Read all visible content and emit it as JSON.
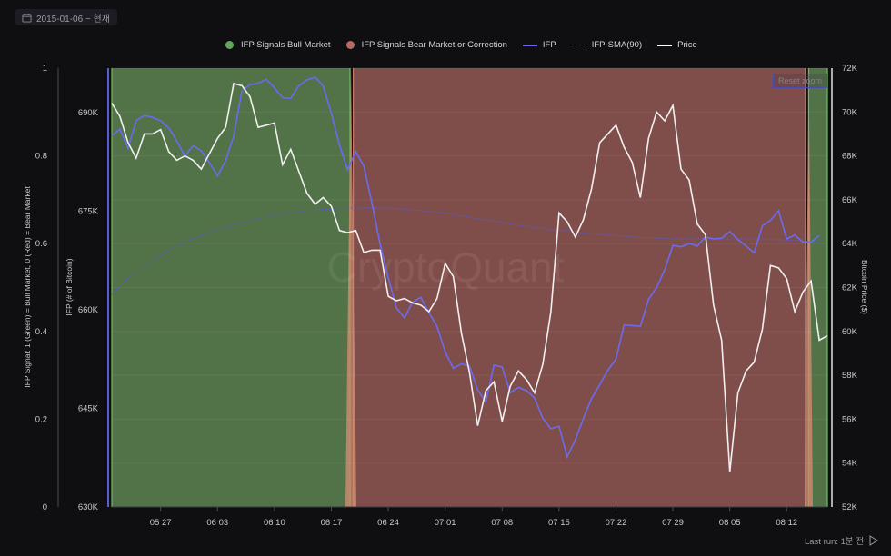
{
  "date_range": {
    "label": "2015-01-06 ~ 현재",
    "icon": "calendar-icon"
  },
  "legend": [
    {
      "label": "IFP Signals Bull Market",
      "type": "dot",
      "color": "#5fa85a"
    },
    {
      "label": "IFP Signals Bear Market or Correction",
      "type": "dot",
      "color": "#b86a62"
    },
    {
      "label": "IFP",
      "type": "line",
      "color": "#6b6bef"
    },
    {
      "label": "IFP-SMA(90)",
      "type": "dashed",
      "color": "#5555c0"
    },
    {
      "label": "Price",
      "type": "line",
      "color": "#ffffff"
    }
  ],
  "reset_zoom_label": "Reset zoom",
  "watermark": "CryptoQuant",
  "last_run": {
    "label": "Last run: 1분 전",
    "icon": "play-icon"
  },
  "colors": {
    "background": "#0f0f12",
    "bull_fill": "#527348",
    "bear_fill": "#804e4a",
    "transition_fill": "#c98a6e",
    "ifp": "#6b6bef",
    "sma": "#5a5ac8",
    "price": "#f0f0f0"
  },
  "chart_data": {
    "type": "line",
    "title": "",
    "x": [
      "05 21",
      "05 22",
      "05 23",
      "05 24",
      "05 25",
      "05 26",
      "05 27",
      "05 28",
      "05 29",
      "05 30",
      "05 31",
      "06 01",
      "06 02",
      "06 03",
      "06 04",
      "06 05",
      "06 06",
      "06 07",
      "06 08",
      "06 09",
      "06 10",
      "06 11",
      "06 12",
      "06 13",
      "06 14",
      "06 15",
      "06 16",
      "06 17",
      "06 18",
      "06 19",
      "06 20",
      "06 21",
      "06 22",
      "06 23",
      "06 24",
      "06 25",
      "06 26",
      "06 27",
      "06 28",
      "06 29",
      "06 30",
      "07 01",
      "07 02",
      "07 03",
      "07 04",
      "07 05",
      "07 06",
      "07 07",
      "07 08",
      "07 09",
      "07 10",
      "07 11",
      "07 12",
      "07 13",
      "07 14",
      "07 15",
      "07 16",
      "07 17",
      "07 18",
      "07 19",
      "07 20",
      "07 21",
      "07 22",
      "07 23",
      "07 24",
      "07 25",
      "07 26",
      "07 27",
      "07 28",
      "07 29",
      "07 30",
      "07 31",
      "08 01",
      "08 02",
      "08 03",
      "08 04",
      "08 05",
      "08 06",
      "08 07",
      "08 08",
      "08 09",
      "08 10",
      "08 11",
      "08 12",
      "08 13",
      "08 14",
      "08 15",
      "08 16",
      "08 17"
    ],
    "xticks": [
      "05 27",
      "06 03",
      "06 10",
      "06 17",
      "06 24",
      "07 01",
      "07 08",
      "07 15",
      "07 22",
      "07 29",
      "08 05",
      "08 12"
    ],
    "series": [
      {
        "name": "IFP",
        "axis": "ifp",
        "values": [
          686.5,
          687.5,
          684.6,
          688.8,
          689.6,
          689.3,
          688.8,
          687.7,
          685.7,
          683.4,
          685.0,
          684.2,
          682.4,
          680.4,
          682.7,
          686.5,
          693.3,
          694.3,
          694.5,
          695.1,
          693.8,
          692.3,
          692.2,
          694.1,
          695.0,
          695.4,
          694.1,
          689.9,
          685.1,
          681.3,
          684.1,
          681.9,
          676.2,
          670.0,
          664.9,
          660.3,
          658.8,
          661.2,
          661.9,
          659.6,
          657.5,
          653.6,
          651.1,
          651.8,
          651.4,
          647.8,
          646.0,
          651.6,
          651.3,
          647.4,
          648.2,
          647.7,
          646.6,
          643.5,
          641.9,
          642.3,
          637.6,
          640.2,
          643.5,
          646.5,
          648.6,
          650.8,
          652.5,
          657.7,
          657.6,
          657.5,
          661.6,
          663.4,
          666.1,
          669.8,
          669.6,
          670.1,
          669.7,
          671.1,
          670.8,
          670.9,
          671.9,
          670.7,
          669.7,
          668.7,
          672.8,
          673.6,
          675.1,
          670.8,
          671.4,
          670.3,
          670.3,
          671.3,
          672.3
        ]
      },
      {
        "name": "IFP-SMA(90)",
        "axis": "ifp",
        "values": [
          662.3,
          663.6,
          664.8,
          665.8,
          666.7,
          667.5,
          668.3,
          669.0,
          669.7,
          670.3,
          670.8,
          671.3,
          671.8,
          672.2,
          672.6,
          673.0,
          673.3,
          673.6,
          673.9,
          674.1,
          674.4,
          674.6,
          674.8,
          675.0,
          675.1,
          675.2,
          675.3,
          675.3,
          675.4,
          675.5,
          675.5,
          675.5,
          675.6,
          675.5,
          675.5,
          675.4,
          675.3,
          675.2,
          675.1,
          675.0,
          674.8,
          674.7,
          674.5,
          674.3,
          674.1,
          673.9,
          673.7,
          673.5,
          673.3,
          673.1,
          672.9,
          672.7,
          672.5,
          672.4,
          672.2,
          672.1,
          672.0,
          671.8,
          671.7,
          671.6,
          671.5,
          671.4,
          671.3,
          671.2,
          671.1,
          671.0,
          671.0,
          670.9,
          670.9,
          670.8,
          670.8,
          670.8,
          670.8,
          670.8,
          670.8,
          670.8,
          670.8,
          670.8,
          670.8,
          670.8,
          670.8,
          670.7,
          670.7,
          670.6,
          670.6,
          670.5,
          670.4,
          670.3,
          670.2
        ]
      },
      {
        "name": "Price",
        "axis": "price",
        "values": [
          70.4,
          69.8,
          68.6,
          67.9,
          69.0,
          69.0,
          69.2,
          68.2,
          67.8,
          68.0,
          67.8,
          67.4,
          68.1,
          68.8,
          69.3,
          71.3,
          71.2,
          70.7,
          69.3,
          69.4,
          69.5,
          67.6,
          68.3,
          67.3,
          66.3,
          65.8,
          66.1,
          65.7,
          64.6,
          64.5,
          64.6,
          63.6,
          63.7,
          63.7,
          61.6,
          61.4,
          61.5,
          61.3,
          61.2,
          60.9,
          61.5,
          63.1,
          62.5,
          59.9,
          58.1,
          55.7,
          57.3,
          57.7,
          55.9,
          57.5,
          58.2,
          57.8,
          57.2,
          58.5,
          60.9,
          65.4,
          65.0,
          64.3,
          65.1,
          66.5,
          68.6,
          69.0,
          69.4,
          68.4,
          67.7,
          66.1,
          68.8,
          70.0,
          69.6,
          70.3,
          67.4,
          66.9,
          64.9,
          64.4,
          61.2,
          59.6,
          53.6,
          57.2,
          58.2,
          58.6,
          60.1,
          63.0,
          62.9,
          62.4,
          60.9,
          61.8,
          62.3,
          59.6,
          59.8
        ]
      }
    ],
    "signal": [
      {
        "from": "05 21",
        "to": "06 19",
        "state": "bull",
        "value": 1
      },
      {
        "from": "06 20",
        "to": "08 14",
        "state": "bear",
        "value": 0
      },
      {
        "from": "08 15",
        "to": "08 17",
        "state": "bull",
        "value": 1
      }
    ],
    "axes": {
      "signal": {
        "label": "IFP Signal: 1 (Green) = Bull Market, 0 (Red) = Bear Market",
        "ticks": [
          "0",
          "0.2",
          "0.4",
          "0.6",
          "0.8",
          "1"
        ],
        "range": [
          0,
          1
        ]
      },
      "ifp": {
        "label": "IFP (# of Bitcoin)",
        "ticks": [
          "630K",
          "645K",
          "660K",
          "675K",
          "690K"
        ],
        "range": [
          630,
          696.8
        ]
      },
      "price": {
        "label": "Bitcoin Price ($)",
        "ticks": [
          "52K",
          "54K",
          "56K",
          "58K",
          "60K",
          "62K",
          "64K",
          "66K",
          "68K",
          "70K",
          "72K"
        ],
        "range": [
          52,
          72
        ]
      }
    },
    "grid": true,
    "legend_position": "top"
  }
}
